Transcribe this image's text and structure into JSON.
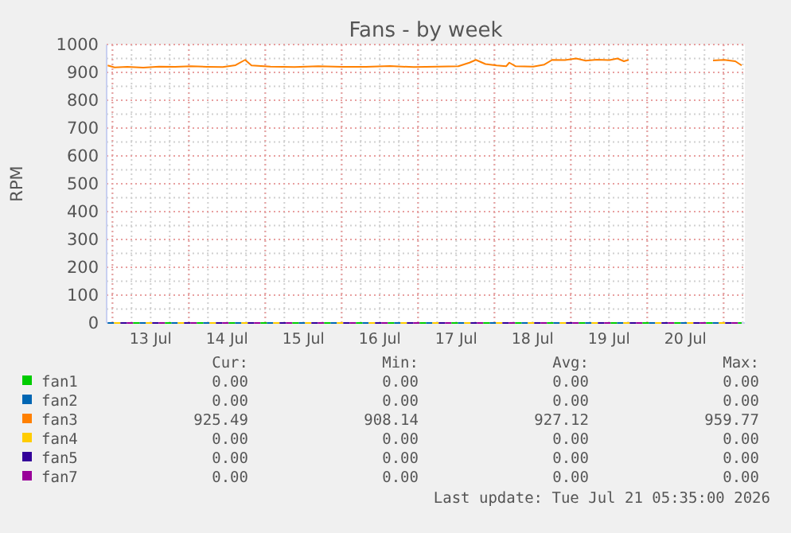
{
  "chart_data": {
    "type": "line",
    "title": "Fans - by week",
    "ylabel": "RPM",
    "xlim": [
      "2026-07-12T22:10",
      "2026-07-21T06:40"
    ],
    "xticks": [
      {
        "value": "2026-07-13T12:00",
        "label": "13 Jul"
      },
      {
        "value": "2026-07-14T12:00",
        "label": "14 Jul"
      },
      {
        "value": "2026-07-15T12:00",
        "label": "15 Jul"
      },
      {
        "value": "2026-07-16T12:00",
        "label": "16 Jul"
      },
      {
        "value": "2026-07-17T12:00",
        "label": "17 Jul"
      },
      {
        "value": "2026-07-18T12:00",
        "label": "18 Jul"
      },
      {
        "value": "2026-07-19T12:00",
        "label": "19 Jul"
      },
      {
        "value": "2026-07-20T12:00",
        "label": "20 Jul"
      }
    ],
    "ylim": [
      0,
      1000
    ],
    "yticks": [
      0,
      100,
      200,
      300,
      400,
      500,
      600,
      700,
      800,
      900,
      1000
    ],
    "grid": true,
    "legend": "bottom",
    "marker": "none",
    "line_style": "solid",
    "series": [
      {
        "name": "fan2",
        "color": "#0066b3",
        "line_style": "dashed",
        "x": [
          "2026-07-12T22:30",
          "2026-07-21T05:40"
        ],
        "values": [
          0,
          0
        ]
      },
      {
        "name": "fan4",
        "color": "#ffcc00",
        "line_style": "dashed",
        "x": [
          "2026-07-12T22:30",
          "2026-07-21T05:40"
        ],
        "values": [
          0,
          0
        ]
      },
      {
        "name": "fan5",
        "color": "#330099",
        "line_style": "dashed",
        "x": [
          "2026-07-12T22:30",
          "2026-07-21T05:40"
        ],
        "values": [
          0,
          0
        ]
      },
      {
        "name": "fan7",
        "color": "#990099",
        "line_style": "dashed",
        "x": [
          "2026-07-12T22:30",
          "2026-07-21T05:40"
        ],
        "values": [
          0,
          0
        ]
      },
      {
        "name": "fan1",
        "color": "#00cc00",
        "line_style": "dashed",
        "x": [
          "2026-07-12T22:30",
          "2026-07-21T05:40"
        ],
        "values": [
          0,
          0
        ]
      },
      {
        "name": "fan3",
        "color": "#ff8000",
        "x": [
          "2026-07-12T22:30",
          "2026-07-13T00:40",
          "2026-07-13T04:40",
          "2026-07-13T09:40",
          "2026-07-13T14:40",
          "2026-07-13T19:40",
          "2026-07-14T00:40",
          "2026-07-14T05:40",
          "2026-07-14T10:40",
          "2026-07-14T14:40",
          "2026-07-14T17:40",
          "2026-07-14T19:40",
          "2026-07-15T01:40",
          "2026-07-15T09:10",
          "2026-07-15T16:40",
          "2026-07-16T00:10",
          "2026-07-16T07:40",
          "2026-07-16T15:10",
          "2026-07-16T22:40",
          "2026-07-17T06:10",
          "2026-07-17T12:40",
          "2026-07-17T16:10",
          "2026-07-17T18:10",
          "2026-07-17T21:10",
          "2026-07-18T00:40",
          "2026-07-18T03:40",
          "2026-07-18T04:40",
          "2026-07-18T06:40",
          "2026-07-18T12:10",
          "2026-07-18T15:40",
          "2026-07-18T18:10",
          "2026-07-18T22:10",
          "2026-07-19T01:40",
          "2026-07-19T04:40",
          "2026-07-19T08:10",
          "2026-07-19T12:10",
          "2026-07-19T14:40",
          "2026-07-19T16:40",
          "2026-07-19T18:10",
          "2026-07-19T19:00",
          "2026-07-20T20:40",
          "2026-07-21T00:10",
          "2026-07-21T03:40",
          "2026-07-21T05:40"
        ],
        "values": [
          925,
          918,
          920,
          917,
          921,
          920,
          922,
          920,
          919,
          926,
          945,
          925,
          921,
          919,
          922,
          920,
          920,
          923,
          919,
          921,
          922,
          935,
          945,
          930,
          925,
          922,
          935,
          922,
          921,
          928,
          945,
          944,
          950,
          942,
          946,
          944,
          950,
          940,
          945,
          null,
          943,
          945,
          940,
          925
        ]
      }
    ],
    "annotations": [
      "Cur:",
      "Min:",
      "Avg:",
      "Max:",
      "0.00",
      "0.00",
      "0.00",
      "0.00",
      "0.00",
      "0.00",
      "0.00",
      "0.00",
      "925.49",
      "908.14",
      "927.12",
      "959.77",
      "0.00",
      "0.00",
      "0.00",
      "0.00",
      "0.00",
      "0.00",
      "0.00",
      "0.00",
      "0.00",
      "0.00",
      "0.00",
      "0.00",
      "Last update: Tue Jul 21 05:35:00 2026"
    ]
  }
}
